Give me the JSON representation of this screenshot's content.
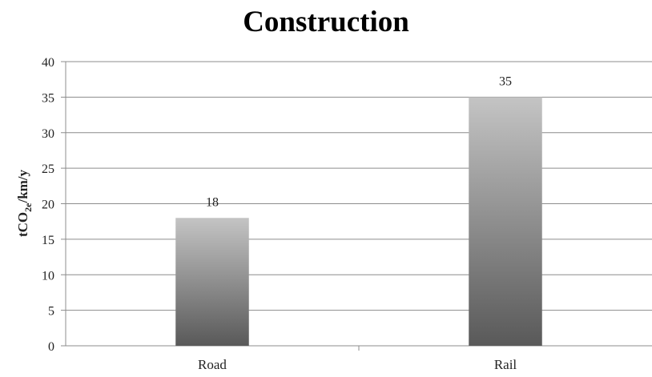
{
  "chart_data": {
    "type": "bar",
    "title": "Construction",
    "ylabel_main": "tCO",
    "ylabel_sub": "2e",
    "ylabel_tail": "/km/y",
    "categories": [
      "Road",
      "Rail"
    ],
    "values": [
      18,
      35
    ],
    "data_labels": [
      "18",
      "35"
    ],
    "ylim": [
      0,
      40
    ],
    "yticks": [
      0,
      5,
      10,
      15,
      20,
      25,
      30,
      35,
      40
    ],
    "grid": true,
    "legend": "none",
    "bar_color_top": "#c4c4c4",
    "bar_color_bottom": "#595959"
  }
}
